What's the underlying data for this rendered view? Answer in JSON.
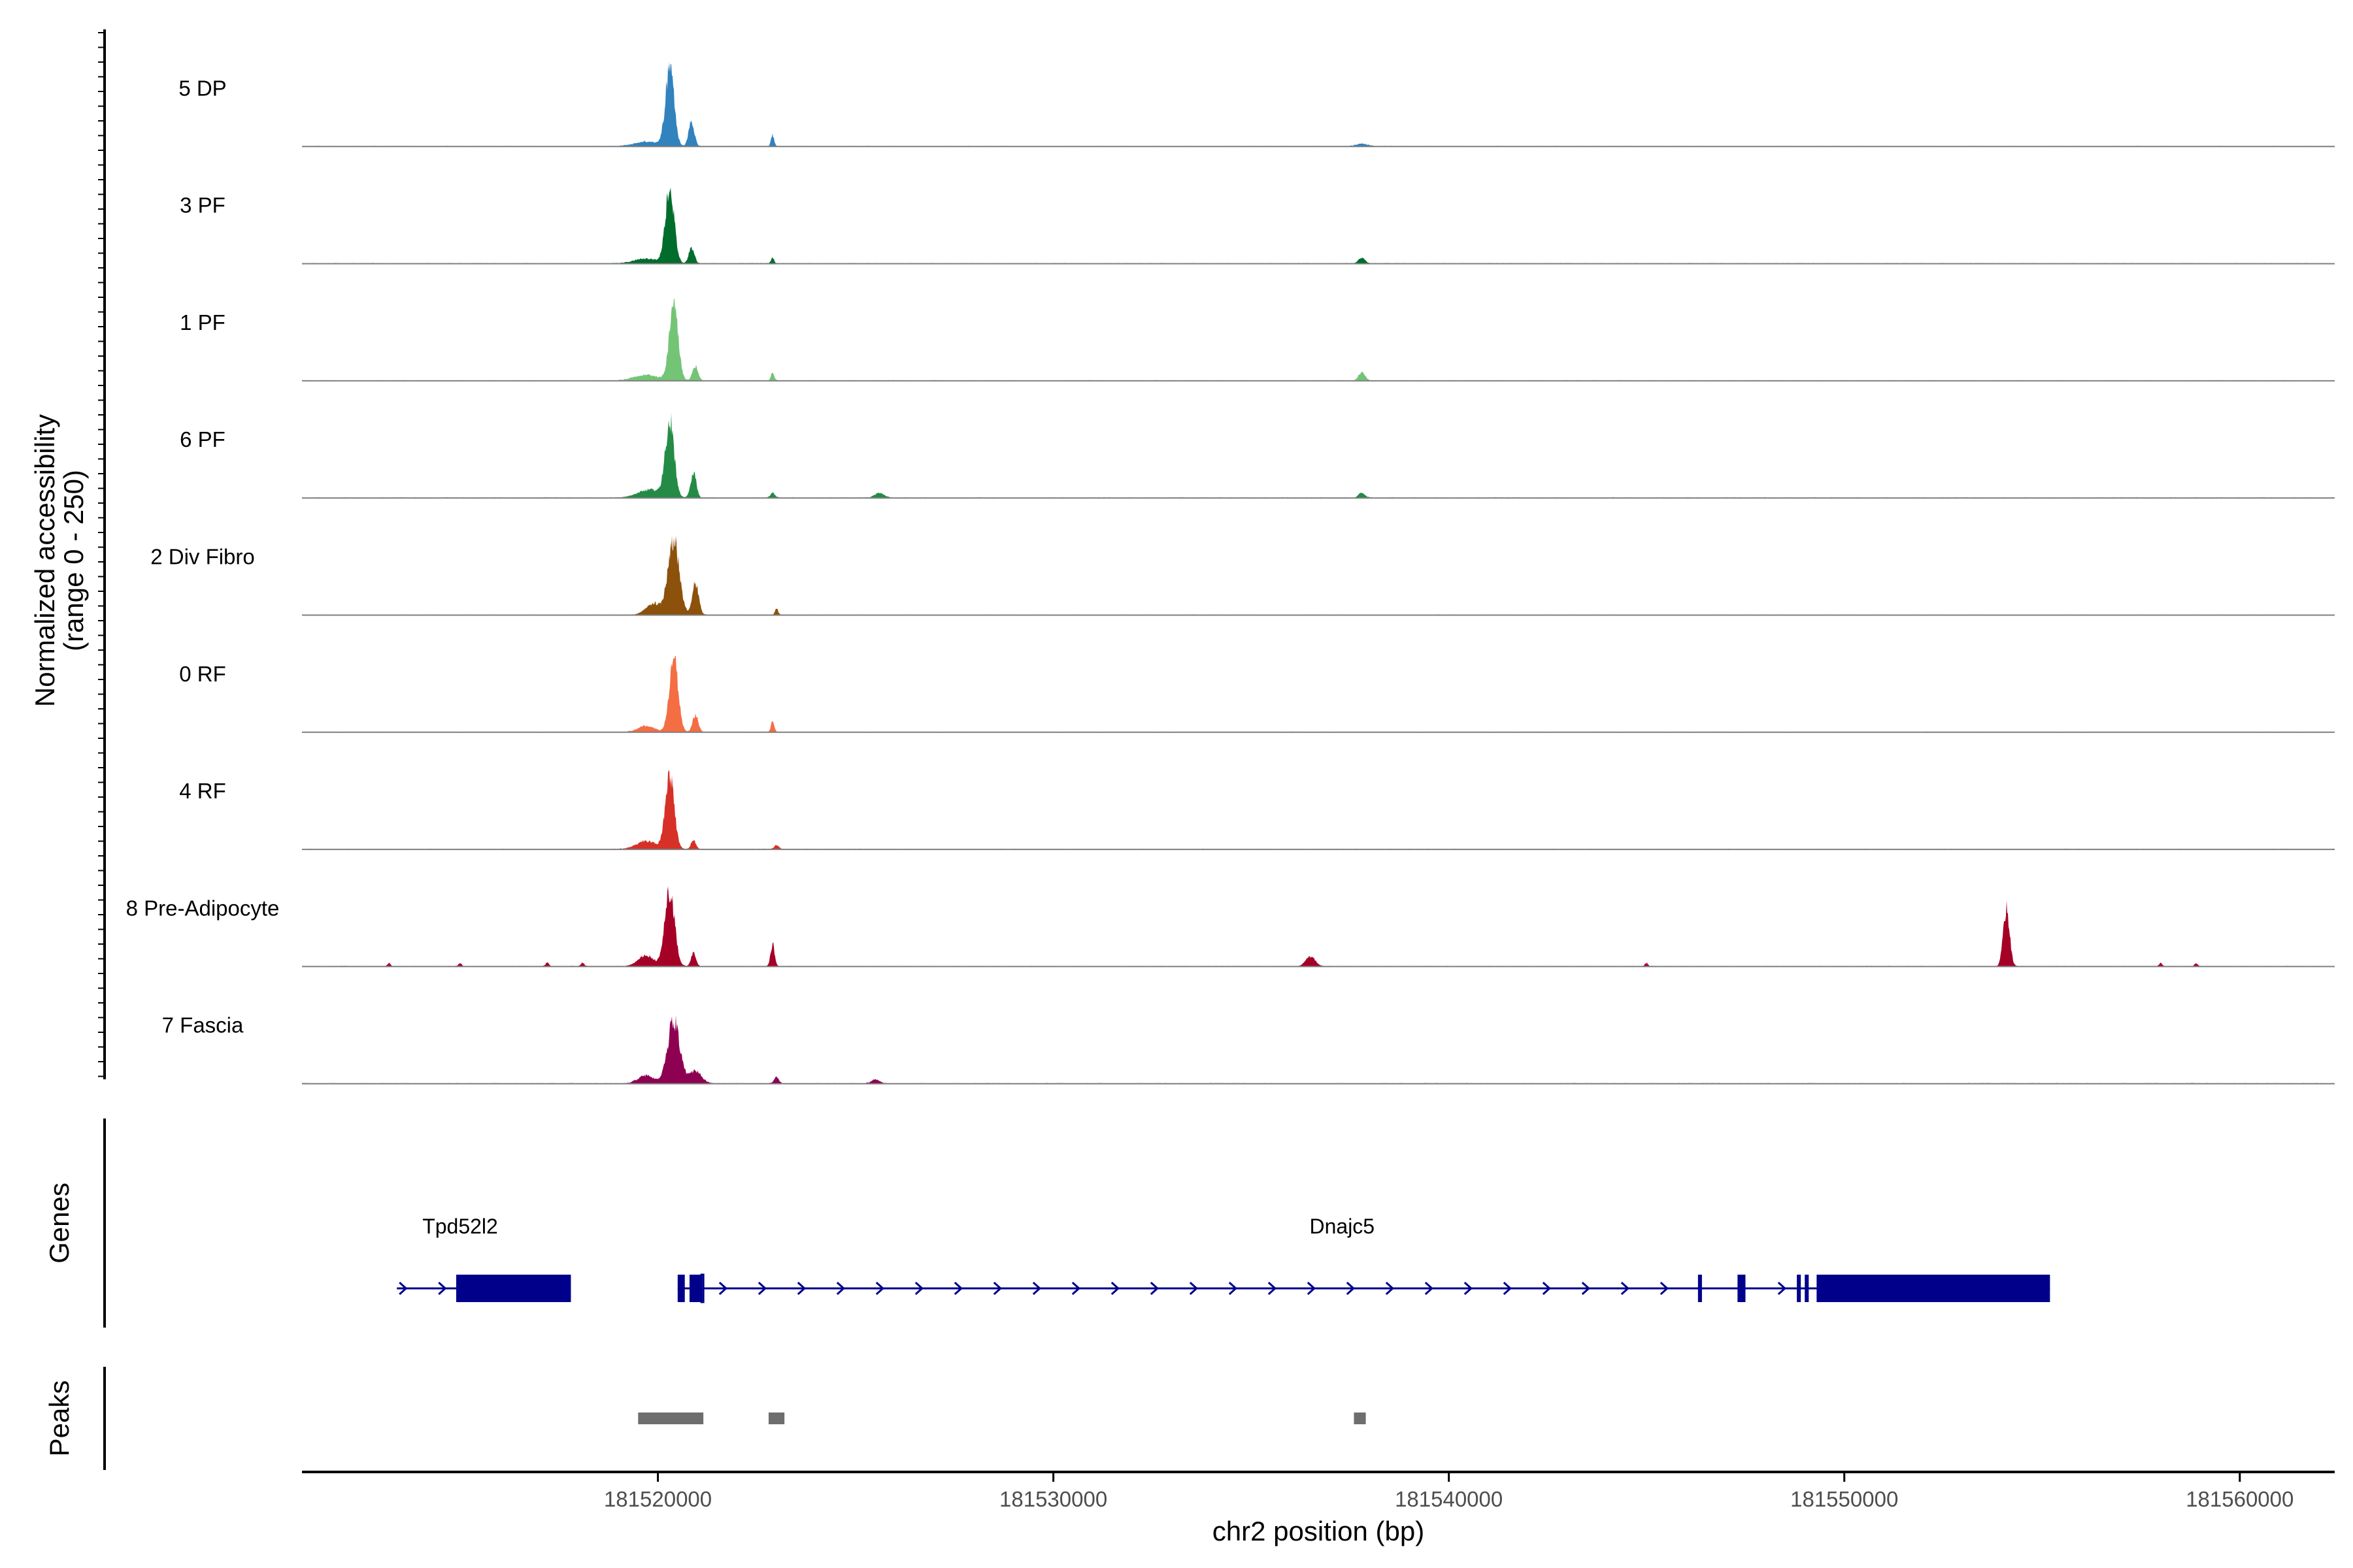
{
  "chart_data": {
    "type": "area",
    "title": "",
    "ylabel_line1": "Normalized accessibility",
    "ylabel_line2": "(range 0 - 250)",
    "ylim": [
      0,
      250
    ],
    "xlabel": "chr2 position (bp)",
    "xlim": [
      181511000,
      181562400
    ],
    "x_ticks": [
      181520000,
      181530000,
      181540000,
      181550000,
      181560000
    ],
    "x_tick_labels": [
      "181520000",
      "181530000",
      "181540000",
      "181550000",
      "181560000"
    ],
    "signal_noise_level": 2,
    "series": [
      {
        "name": "5 DP",
        "color": "#3182BD",
        "peaks": [
          [
            181520300,
            240,
            110
          ],
          [
            181520850,
            80,
            70
          ],
          [
            181519700,
            15,
            300
          ],
          [
            181522900,
            35,
            40
          ],
          [
            181537800,
            8,
            150
          ]
        ]
      },
      {
        "name": "3 PF",
        "color": "#006D2C",
        "peaks": [
          [
            181520300,
            240,
            110
          ],
          [
            181520850,
            50,
            70
          ],
          [
            181519700,
            15,
            300
          ],
          [
            181522900,
            18,
            40
          ],
          [
            181537800,
            18,
            80
          ]
        ]
      },
      {
        "name": "1 PF",
        "color": "#74C476",
        "peaks": [
          [
            181520400,
            240,
            110
          ],
          [
            181520950,
            45,
            70
          ],
          [
            181519700,
            18,
            300
          ],
          [
            181522900,
            25,
            40
          ],
          [
            181537800,
            25,
            80
          ]
        ]
      },
      {
        "name": "6 PF",
        "color": "#238B45",
        "peaks": [
          [
            181520300,
            240,
            110
          ],
          [
            181520900,
            80,
            70
          ],
          [
            181519800,
            25,
            300
          ],
          [
            181522900,
            15,
            60
          ],
          [
            181525600,
            14,
            120
          ],
          [
            181537800,
            16,
            80
          ]
        ]
      },
      {
        "name": "2 Div Fibro",
        "color": "#8C510A",
        "peaks": [
          [
            181520400,
            240,
            140
          ],
          [
            181520950,
            100,
            80
          ],
          [
            181519900,
            35,
            200
          ],
          [
            181523000,
            20,
            40
          ]
        ]
      },
      {
        "name": "0 RF",
        "color": "#F46D43",
        "peaks": [
          [
            181520400,
            240,
            110
          ],
          [
            181520950,
            55,
            70
          ],
          [
            181519700,
            20,
            200
          ],
          [
            181522900,
            35,
            40
          ]
        ]
      },
      {
        "name": "4 RF",
        "color": "#D73027",
        "peaks": [
          [
            181520300,
            240,
            110
          ],
          [
            181520900,
            30,
            60
          ],
          [
            181519700,
            25,
            250
          ],
          [
            181523000,
            12,
            60
          ]
        ]
      },
      {
        "name": "8 Pre-Adipocyte",
        "color": "#A50026",
        "peaks": [
          [
            181520300,
            240,
            120
          ],
          [
            181520900,
            45,
            60
          ],
          [
            181519700,
            35,
            200
          ],
          [
            181522900,
            70,
            50
          ],
          [
            181554100,
            180,
            80
          ],
          [
            181536500,
            30,
            120
          ],
          [
            181518100,
            12,
            40
          ],
          [
            181517200,
            12,
            40
          ],
          [
            181515000,
            10,
            40
          ],
          [
            181513200,
            10,
            40
          ],
          [
            181545000,
            10,
            40
          ],
          [
            181558000,
            10,
            40
          ],
          [
            181558900,
            10,
            40
          ]
        ]
      },
      {
        "name": "7 Fascia",
        "color": "#8E0152",
        "peaks": [
          [
            181520400,
            200,
            150
          ],
          [
            181520950,
            40,
            150
          ],
          [
            181519700,
            25,
            200
          ],
          [
            181523000,
            20,
            60
          ],
          [
            181525500,
            12,
            100
          ]
        ]
      }
    ],
    "genes": [
      {
        "name": "Tpd52l2",
        "strand": "+",
        "start": 181513400,
        "end": 181517800,
        "label_position": 181515000,
        "exons": [
          [
            181514900,
            181517800
          ]
        ],
        "utr": []
      },
      {
        "name": "Dnajc5",
        "strand": "+",
        "start": 181520500,
        "end": 181555200,
        "label_position": 181537300,
        "exons": [
          [
            181520500,
            181520680
          ],
          [
            181520800,
            181521080
          ],
          [
            181546300,
            181546400
          ],
          [
            181547300,
            181547500
          ],
          [
            181548800,
            181548900
          ],
          [
            181549000,
            181549100
          ],
          [
            181549300,
            181555200
          ]
        ],
        "utr": [
          [
            181521100,
            181521150
          ]
        ]
      }
    ],
    "peak_regions": [
      [
        181519500,
        181521150
      ],
      [
        181522800,
        181523200
      ],
      [
        181537600,
        181537900
      ]
    ],
    "track_titles": {
      "genes": "Genes",
      "peaks": "Peaks"
    },
    "colors": {
      "gene": "#00008B",
      "peak_region": "#6E6E6E",
      "baseline": "#7F7F7F",
      "axis": "#000000"
    }
  }
}
